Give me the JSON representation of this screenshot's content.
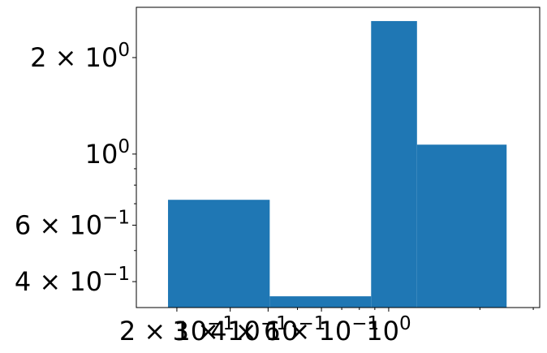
{
  "chart_data": {
    "type": "bar",
    "title": "",
    "xlabel": "",
    "ylabel": "",
    "x_scale": "log",
    "y_scale": "log",
    "grid": false,
    "color": "#1f77b4",
    "bins": [
      {
        "x0": 0.187,
        "x1": 0.405,
        "value": 0.72
      },
      {
        "x0": 0.405,
        "x1": 0.875,
        "value": 0.36
      },
      {
        "x0": 0.875,
        "x1": 1.24,
        "value": 2.6
      },
      {
        "x0": 1.24,
        "x1": 2.45,
        "value": 1.07
      }
    ],
    "xlim": [
      0.147,
      3.15
    ],
    "ylim": [
      0.332,
      2.87
    ],
    "x_major_ticks": [
      {
        "value": 0.2,
        "base": "2 × 10",
        "exp": "−1"
      },
      {
        "value": 0.3,
        "base": "3 × 10",
        "exp": "−1"
      },
      {
        "value": 0.4,
        "base": "4 × 10",
        "exp": "−1"
      },
      {
        "value": 0.6,
        "base": "6 × 10",
        "exp": "−1"
      },
      {
        "value": 1,
        "base": "10",
        "exp": "0"
      }
    ],
    "x_minor_ticks": [
      0.5,
      0.7,
      0.8,
      0.9,
      2,
      3
    ],
    "y_major_ticks": [
      {
        "value": 0.4,
        "base": "4 × 10",
        "exp": "−1"
      },
      {
        "value": 0.6,
        "base": "6 × 10",
        "exp": "−1"
      },
      {
        "value": 1,
        "base": "10",
        "exp": "0"
      },
      {
        "value": 2,
        "base": "2 × 10",
        "exp": "0"
      }
    ],
    "y_minor_ticks": [
      0.5,
      0.7,
      0.8,
      0.9
    ]
  }
}
